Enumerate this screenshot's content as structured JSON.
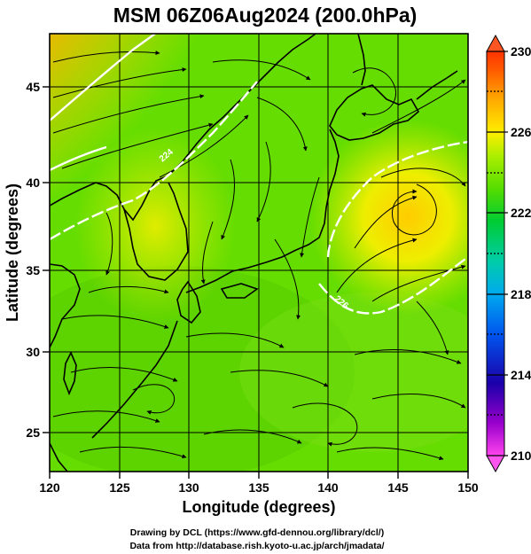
{
  "title": "MSM 06Z06Aug2024 (200.0hPa)",
  "map": {
    "lon_range": [
      120,
      150
    ],
    "lat_range": [
      22.5,
      47.8
    ],
    "xlabel": "Longitude (degrees)",
    "ylabel": "Latitude  (degrees)",
    "x_ticks": [
      "120",
      "125",
      "130",
      "135",
      "140",
      "145",
      "150"
    ],
    "y_ticks": [
      "25",
      "30",
      "35",
      "40",
      "45"
    ],
    "grid": true,
    "contours": [
      {
        "level": "224",
        "label": "224"
      },
      {
        "level": "226",
        "label": "226"
      }
    ]
  },
  "colorbar": {
    "min": 210,
    "max": 230,
    "ticks": [
      "230",
      "226",
      "222",
      "218",
      "214",
      "210"
    ],
    "colors": {
      "bottom": "#ff33ee",
      "low": "#2200bb",
      "mid_low": "#00bbdd",
      "mid": "#22dd22",
      "mid_high": "#ffee00",
      "top": "#ff3300"
    }
  },
  "credits": {
    "line1": "Drawing by DCL (https://www.gfd-dennou.org/library/dcl/)",
    "line2": "Data from http://database.rish.kyoto-u.ac.jp/arch/jmadata/"
  }
}
